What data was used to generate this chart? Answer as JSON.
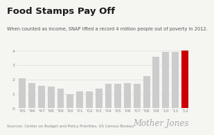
{
  "title": "Food Stamps Pay Off",
  "subtitle": "When counted as income, SNAP lifted a record 4 million people out of poverty in 2012.",
  "source": "Sources: Center on Budget and Policy Priorities, US Census Bureau",
  "branding": "Mother Jones",
  "categories": [
    "'95",
    "'96",
    "'97",
    "'98",
    "'99",
    "'00",
    "'01",
    "'02",
    "'03",
    "'04",
    "'05",
    "'06",
    "'07",
    "'08",
    "'09",
    "'10",
    "'11",
    "'12"
  ],
  "values": [
    2.1,
    1.75,
    1.57,
    1.5,
    1.35,
    0.97,
    1.17,
    1.17,
    1.37,
    1.72,
    1.72,
    1.77,
    1.68,
    2.22,
    3.57,
    3.93,
    3.93,
    4.02
  ],
  "bar_colors": [
    "#cccccc",
    "#cccccc",
    "#cccccc",
    "#cccccc",
    "#cccccc",
    "#cccccc",
    "#cccccc",
    "#cccccc",
    "#cccccc",
    "#cccccc",
    "#cccccc",
    "#cccccc",
    "#cccccc",
    "#cccccc",
    "#cccccc",
    "#cccccc",
    "#cccccc",
    "#cc0000"
  ],
  "ylim": [
    0,
    4.3
  ],
  "yticks": [
    0,
    1,
    2,
    3,
    4
  ],
  "background_color": "#f5f5f2",
  "title_fontsize": 9.5,
  "subtitle_fontsize": 4.8,
  "source_fontsize": 4.0,
  "branding_fontsize": 8.5,
  "bar_width": 0.72,
  "grid_color": "#dddddd",
  "tick_label_color": "#888888",
  "tick_fontsize": 4.5
}
